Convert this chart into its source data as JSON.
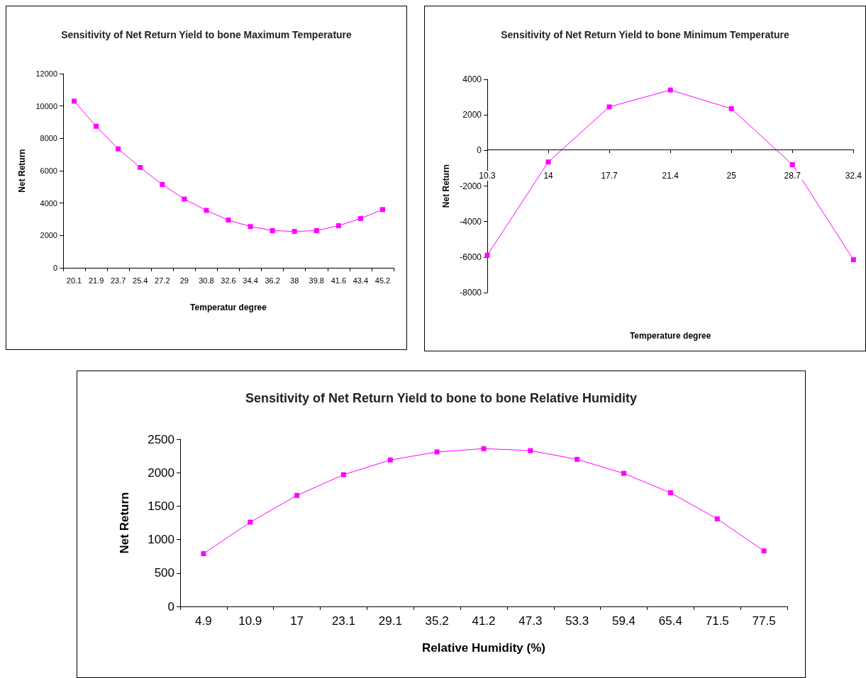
{
  "chart_data": [
    {
      "type": "line",
      "title": "Sensitivity of Net Return Yield to bone Maximum Temperature",
      "xlabel": "Temperatur degree",
      "ylabel": "Net Return",
      "categories": [
        "20.1",
        "21.9",
        "23.7",
        "25.4",
        "27.2",
        "29",
        "30.8",
        "32.6",
        "34.4",
        "36.2",
        "38",
        "39.8",
        "41.6",
        "43.4",
        "45.2"
      ],
      "series": [
        {
          "color": "#ff00ff",
          "values": [
            10300,
            8750,
            7350,
            6200,
            5150,
            4250,
            3550,
            2950,
            2550,
            2300,
            2250,
            2300,
            2600,
            3050,
            3600
          ]
        }
      ],
      "ylim": [
        0,
        12000
      ],
      "yticks": [
        0,
        2000,
        4000,
        6000,
        8000,
        10000,
        12000
      ],
      "marker": "square",
      "line_style": "solid"
    },
    {
      "type": "line",
      "title": "Sensitivity of Net Return Yield to bone Minimum Temperature",
      "xlabel": "Temperature degree",
      "ylabel": "Net Return",
      "categories": [
        "10.3",
        "14",
        "17.7",
        "21.4",
        "25",
        "28.7",
        "32.4"
      ],
      "series": [
        {
          "color": "#ff00ff",
          "values": [
            -5900,
            -650,
            2450,
            3400,
            2350,
            -800,
            -6150
          ]
        }
      ],
      "ylim": [
        -8000,
        4000
      ],
      "yticks": [
        -8000,
        -6000,
        -4000,
        -2000,
        0,
        2000,
        4000
      ],
      "marker": "square",
      "line_style": "solid"
    },
    {
      "type": "line",
      "title": "Sensitivity of Net Return Yield to bone to bone Relative Humidity",
      "xlabel": "Relative Humidity (%)",
      "ylabel": "Net Return",
      "categories": [
        "4.9",
        "10.9",
        "17",
        "23.1",
        "29.1",
        "35.2",
        "41.2",
        "47.3",
        "53.3",
        "59.4",
        "65.4",
        "71.5",
        "77.5"
      ],
      "series": [
        {
          "color": "#ff00ff",
          "values": [
            790,
            1260,
            1660,
            1970,
            2190,
            2310,
            2360,
            2330,
            2200,
            1990,
            1700,
            1310,
            830
          ]
        }
      ],
      "ylim": [
        0,
        2500
      ],
      "yticks": [
        0,
        500,
        1000,
        1500,
        2000,
        2500
      ],
      "marker": "square",
      "line_style": "solid"
    }
  ]
}
